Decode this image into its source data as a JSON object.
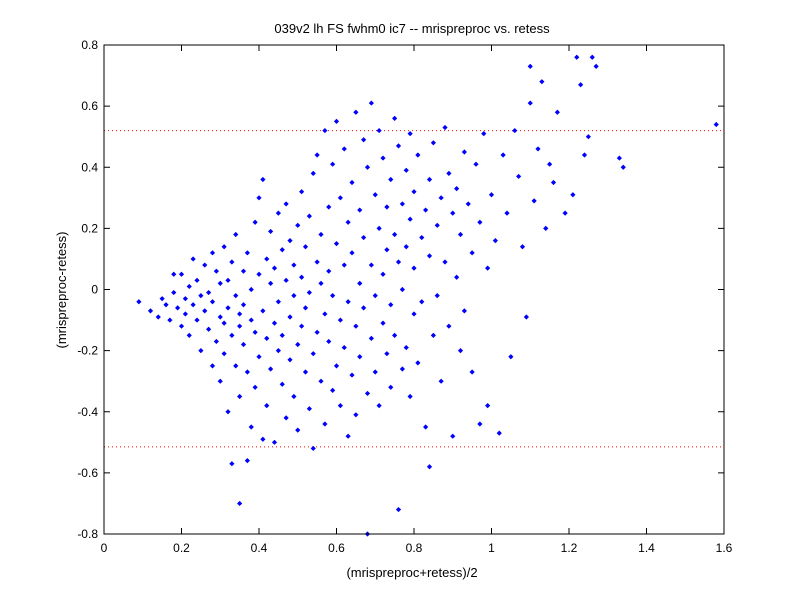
{
  "chart_data": {
    "type": "scatter",
    "title": "039v2 lh FS fwhm0 ic7 -- mrispreproc vs. retess",
    "xlabel": "(mrispreproc+retess)/2",
    "ylabel": "(mrispreproc-retess)",
    "xlim": [
      0,
      1.6
    ],
    "ylim": [
      -0.8,
      0.8
    ],
    "x_ticks": [
      0,
      0.2,
      0.4,
      0.6,
      0.8,
      1,
      1.2,
      1.4,
      1.6
    ],
    "x_tick_labels": [
      "0",
      "0.2",
      "0.4",
      "0.6",
      "0.8",
      "1",
      "1.2",
      "1.4",
      "1.6"
    ],
    "y_ticks": [
      -0.8,
      -0.6,
      -0.4,
      -0.2,
      0,
      0.2,
      0.4,
      0.6,
      0.8
    ],
    "y_tick_labels": [
      "-0.8",
      "-0.6",
      "-0.4",
      "-0.2",
      "0",
      "0.2",
      "0.4",
      "0.6",
      "0.8"
    ],
    "grid": false,
    "legend": "none",
    "reference_lines": [
      {
        "y": 0.52,
        "color": "#ff0000",
        "style": "dotted"
      },
      {
        "y": -0.515,
        "color": "#ff0000",
        "style": "dotted"
      }
    ],
    "series": [
      {
        "color": "#0000ff",
        "marker": "diamond",
        "points": [
          [
            0.09,
            -0.04
          ],
          [
            0.12,
            -0.07
          ],
          [
            0.14,
            -0.09
          ],
          [
            0.15,
            -0.03
          ],
          [
            0.16,
            -0.05
          ],
          [
            0.17,
            -0.1
          ],
          [
            0.18,
            0.05
          ],
          [
            0.18,
            -0.01
          ],
          [
            0.19,
            -0.06
          ],
          [
            0.2,
            0.05
          ],
          [
            0.2,
            -0.12
          ],
          [
            0.21,
            -0.03
          ],
          [
            0.21,
            -0.08
          ],
          [
            0.22,
            0.01
          ],
          [
            0.22,
            -0.15
          ],
          [
            0.23,
            -0.05
          ],
          [
            0.23,
            0.1
          ],
          [
            0.24,
            -0.1
          ],
          [
            0.24,
            0.03
          ],
          [
            0.25,
            -0.2
          ],
          [
            0.25,
            -0.02
          ],
          [
            0.26,
            0.08
          ],
          [
            0.26,
            -0.07
          ],
          [
            0.27,
            -0.13
          ],
          [
            0.27,
            -0.01
          ],
          [
            0.28,
            0.12
          ],
          [
            0.28,
            -0.25
          ],
          [
            0.28,
            -0.04
          ],
          [
            0.29,
            0.06
          ],
          [
            0.29,
            -0.17
          ],
          [
            0.3,
            -0.09
          ],
          [
            0.3,
            0.02
          ],
          [
            0.3,
            -0.3
          ],
          [
            0.31,
            0.14
          ],
          [
            0.31,
            -0.11
          ],
          [
            0.31,
            -0.21
          ],
          [
            0.32,
            0.03
          ],
          [
            0.32,
            -0.06
          ],
          [
            0.32,
            -0.4
          ],
          [
            0.33,
            -0.15
          ],
          [
            0.33,
            0.09
          ],
          [
            0.33,
            -0.57
          ],
          [
            0.34,
            -0.02
          ],
          [
            0.34,
            -0.25
          ],
          [
            0.34,
            0.18
          ],
          [
            0.35,
            -0.08
          ],
          [
            0.35,
            -0.12
          ],
          [
            0.35,
            -0.35
          ],
          [
            0.35,
            -0.7
          ],
          [
            0.36,
            0.06
          ],
          [
            0.36,
            -0.18
          ],
          [
            0.36,
            -0.05
          ],
          [
            0.37,
            0.12
          ],
          [
            0.37,
            -0.27
          ],
          [
            0.37,
            -0.56
          ],
          [
            0.38,
            -0.1
          ],
          [
            0.38,
            0.0
          ],
          [
            0.38,
            -0.45
          ],
          [
            0.39,
            0.22
          ],
          [
            0.39,
            -0.14
          ],
          [
            0.39,
            -0.32
          ],
          [
            0.4,
            0.05
          ],
          [
            0.4,
            -0.22
          ],
          [
            0.4,
            0.3
          ],
          [
            0.41,
            -0.07
          ],
          [
            0.41,
            0.36
          ],
          [
            0.41,
            -0.49
          ],
          [
            0.42,
            -0.16
          ],
          [
            0.42,
            0.1
          ],
          [
            0.42,
            -0.38
          ],
          [
            0.43,
            0.02
          ],
          [
            0.43,
            -0.26
          ],
          [
            0.43,
            0.19
          ],
          [
            0.44,
            -0.11
          ],
          [
            0.44,
            -0.5
          ],
          [
            0.44,
            0.07
          ],
          [
            0.45,
            -0.2
          ],
          [
            0.45,
            0.25
          ],
          [
            0.45,
            -0.04
          ],
          [
            0.46,
            -0.31
          ],
          [
            0.46,
            0.13
          ],
          [
            0.46,
            -0.15
          ],
          [
            0.47,
            0.03
          ],
          [
            0.47,
            -0.42
          ],
          [
            0.47,
            0.28
          ],
          [
            0.48,
            -0.09
          ],
          [
            0.48,
            -0.23
          ],
          [
            0.48,
            0.16
          ],
          [
            0.49,
            -0.02
          ],
          [
            0.49,
            -0.35
          ],
          [
            0.49,
            0.08
          ],
          [
            0.5,
            -0.18
          ],
          [
            0.5,
            0.21
          ],
          [
            0.5,
            -0.46
          ],
          [
            0.51,
            0.04
          ],
          [
            0.51,
            -0.12
          ],
          [
            0.51,
            0.32
          ],
          [
            0.52,
            -0.27
          ],
          [
            0.52,
            -0.06
          ],
          [
            0.52,
            0.14
          ],
          [
            0.53,
            -0.39
          ],
          [
            0.53,
            0.24
          ],
          [
            0.53,
            -0.01
          ],
          [
            0.54,
            -0.21
          ],
          [
            0.54,
            0.38
          ],
          [
            0.54,
            -0.52
          ],
          [
            0.55,
            0.09
          ],
          [
            0.55,
            -0.14
          ],
          [
            0.55,
            0.44
          ],
          [
            0.56,
            -0.3
          ],
          [
            0.56,
            0.02
          ],
          [
            0.56,
            0.18
          ],
          [
            0.57,
            -0.08
          ],
          [
            0.57,
            0.52
          ],
          [
            0.57,
            -0.44
          ],
          [
            0.58,
            0.27
          ],
          [
            0.58,
            -0.17
          ],
          [
            0.58,
            0.06
          ],
          [
            0.59,
            -0.33
          ],
          [
            0.59,
            0.41
          ],
          [
            0.59,
            -0.02
          ],
          [
            0.6,
            0.15
          ],
          [
            0.6,
            -0.25
          ],
          [
            0.6,
            0.55
          ],
          [
            0.61,
            0.3
          ],
          [
            0.61,
            -0.1
          ],
          [
            0.61,
            -0.38
          ],
          [
            0.62,
            0.08
          ],
          [
            0.62,
            0.46
          ],
          [
            0.62,
            -0.19
          ],
          [
            0.63,
            0.22
          ],
          [
            0.63,
            -0.04
          ],
          [
            0.63,
            -0.48
          ],
          [
            0.64,
            0.35
          ],
          [
            0.64,
            -0.28
          ],
          [
            0.64,
            0.12
          ],
          [
            0.65,
            0.58
          ],
          [
            0.65,
            -0.12
          ],
          [
            0.65,
            -0.41
          ],
          [
            0.66,
            0.26
          ],
          [
            0.66,
            0.02
          ],
          [
            0.66,
            -0.22
          ],
          [
            0.67,
            0.49
          ],
          [
            0.67,
            -0.06
          ],
          [
            0.67,
            0.17
          ],
          [
            0.68,
            -0.34
          ],
          [
            0.68,
            0.4
          ],
          [
            0.68,
            -0.8
          ],
          [
            0.69,
            0.08
          ],
          [
            0.69,
            0.61
          ],
          [
            0.69,
            -0.16
          ],
          [
            0.7,
            0.31
          ],
          [
            0.7,
            -0.27
          ],
          [
            0.7,
            -0.02
          ],
          [
            0.71,
            0.2
          ],
          [
            0.71,
            0.52
          ],
          [
            0.71,
            -0.38
          ],
          [
            0.72,
            0.05
          ],
          [
            0.72,
            0.43
          ],
          [
            0.72,
            -0.11
          ],
          [
            0.73,
            0.27
          ],
          [
            0.73,
            -0.21
          ],
          [
            0.73,
            0.13
          ],
          [
            0.74,
            -0.32
          ],
          [
            0.74,
            0.36
          ],
          [
            0.74,
            -0.05
          ],
          [
            0.75,
            0.56
          ],
          [
            0.75,
            0.18
          ],
          [
            0.75,
            -0.15
          ],
          [
            0.76,
            0.09
          ],
          [
            0.76,
            -0.72
          ],
          [
            0.76,
            0.47
          ],
          [
            0.77,
            -0.26
          ],
          [
            0.77,
            0.28
          ],
          [
            0.77,
            0.0
          ],
          [
            0.78,
            0.39
          ],
          [
            0.78,
            -0.19
          ],
          [
            0.78,
            0.14
          ],
          [
            0.79,
            -0.35
          ],
          [
            0.79,
            0.23
          ],
          [
            0.79,
            0.51
          ],
          [
            0.8,
            -0.08
          ],
          [
            0.8,
            0.07
          ],
          [
            0.8,
            0.32
          ],
          [
            0.81,
            -0.24
          ],
          [
            0.81,
            0.44
          ],
          [
            0.82,
            0.17
          ],
          [
            0.82,
            -0.04
          ],
          [
            0.83,
            0.26
          ],
          [
            0.83,
            -0.45
          ],
          [
            0.84,
            0.36
          ],
          [
            0.84,
            -0.58
          ],
          [
            0.84,
            0.11
          ],
          [
            0.85,
            -0.15
          ],
          [
            0.85,
            0.48
          ],
          [
            0.86,
            0.21
          ],
          [
            0.86,
            -0.02
          ],
          [
            0.87,
            0.3
          ],
          [
            0.87,
            -0.3
          ],
          [
            0.88,
            0.53
          ],
          [
            0.88,
            0.09
          ],
          [
            0.89,
            -0.12
          ],
          [
            0.89,
            0.38
          ],
          [
            0.9,
            0.25
          ],
          [
            0.9,
            -0.48
          ],
          [
            0.91,
            0.04
          ],
          [
            0.91,
            0.33
          ],
          [
            0.92,
            -0.2
          ],
          [
            0.92,
            0.18
          ],
          [
            0.93,
            0.45
          ],
          [
            0.93,
            -0.07
          ],
          [
            0.94,
            0.28
          ],
          [
            0.95,
            -0.27
          ],
          [
            0.95,
            0.12
          ],
          [
            0.96,
            0.41
          ],
          [
            0.97,
            -0.44
          ],
          [
            0.97,
            0.22
          ],
          [
            0.98,
            0.51
          ],
          [
            0.99,
            0.07
          ],
          [
            0.99,
            -0.38
          ],
          [
            1.0,
            0.31
          ],
          [
            1.01,
            0.16
          ],
          [
            1.02,
            -0.47
          ],
          [
            1.03,
            0.44
          ],
          [
            1.04,
            0.25
          ],
          [
            1.05,
            -0.22
          ],
          [
            1.06,
            0.52
          ],
          [
            1.07,
            0.37
          ],
          [
            1.08,
            0.14
          ],
          [
            1.09,
            -0.09
          ],
          [
            1.1,
            0.61
          ],
          [
            1.1,
            0.73
          ],
          [
            1.11,
            0.29
          ],
          [
            1.12,
            0.46
          ],
          [
            1.13,
            0.68
          ],
          [
            1.14,
            0.2
          ],
          [
            1.15,
            0.41
          ],
          [
            1.16,
            0.35
          ],
          [
            1.17,
            0.58
          ],
          [
            1.19,
            0.25
          ],
          [
            1.21,
            0.31
          ],
          [
            1.22,
            0.76
          ],
          [
            1.23,
            0.67
          ],
          [
            1.24,
            0.44
          ],
          [
            1.25,
            0.5
          ],
          [
            1.26,
            0.76
          ],
          [
            1.27,
            0.73
          ],
          [
            1.33,
            0.43
          ],
          [
            1.34,
            0.4
          ],
          [
            1.58,
            0.54
          ]
        ]
      }
    ]
  }
}
